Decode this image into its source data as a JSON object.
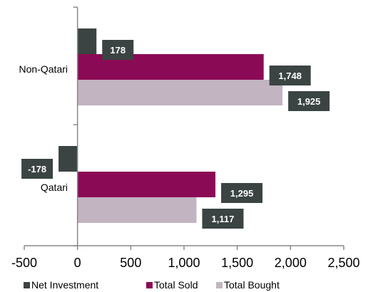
{
  "chart_data": {
    "type": "bar",
    "orientation": "horizontal",
    "categories": [
      "Non-Qatari",
      "Qatari"
    ],
    "series": [
      {
        "name": "Net Investment",
        "values": [
          178,
          -178
        ],
        "color": "#3b4443"
      },
      {
        "name": "Total Sold",
        "values": [
          1748,
          1295
        ],
        "color": "#8b0a55"
      },
      {
        "name": "Total Bought",
        "values": [
          1925,
          1117
        ],
        "color": "#c3b4c1"
      }
    ],
    "data_labels": [
      [
        "178",
        "-178"
      ],
      [
        "1,748",
        "1,295"
      ],
      [
        "1,925",
        "1,117"
      ]
    ],
    "x_ticks": [
      "-500",
      "0",
      "500",
      "1,000",
      "1,500",
      "2,000",
      "2,500"
    ],
    "x_tick_values": [
      -500,
      0,
      500,
      1000,
      1500,
      2000,
      2500
    ],
    "xlim": [
      -500,
      2500
    ],
    "grid": false,
    "legend_position": "bottom",
    "label_box_color": "#3b4443",
    "title": "",
    "xlabel": "",
    "ylabel": ""
  }
}
